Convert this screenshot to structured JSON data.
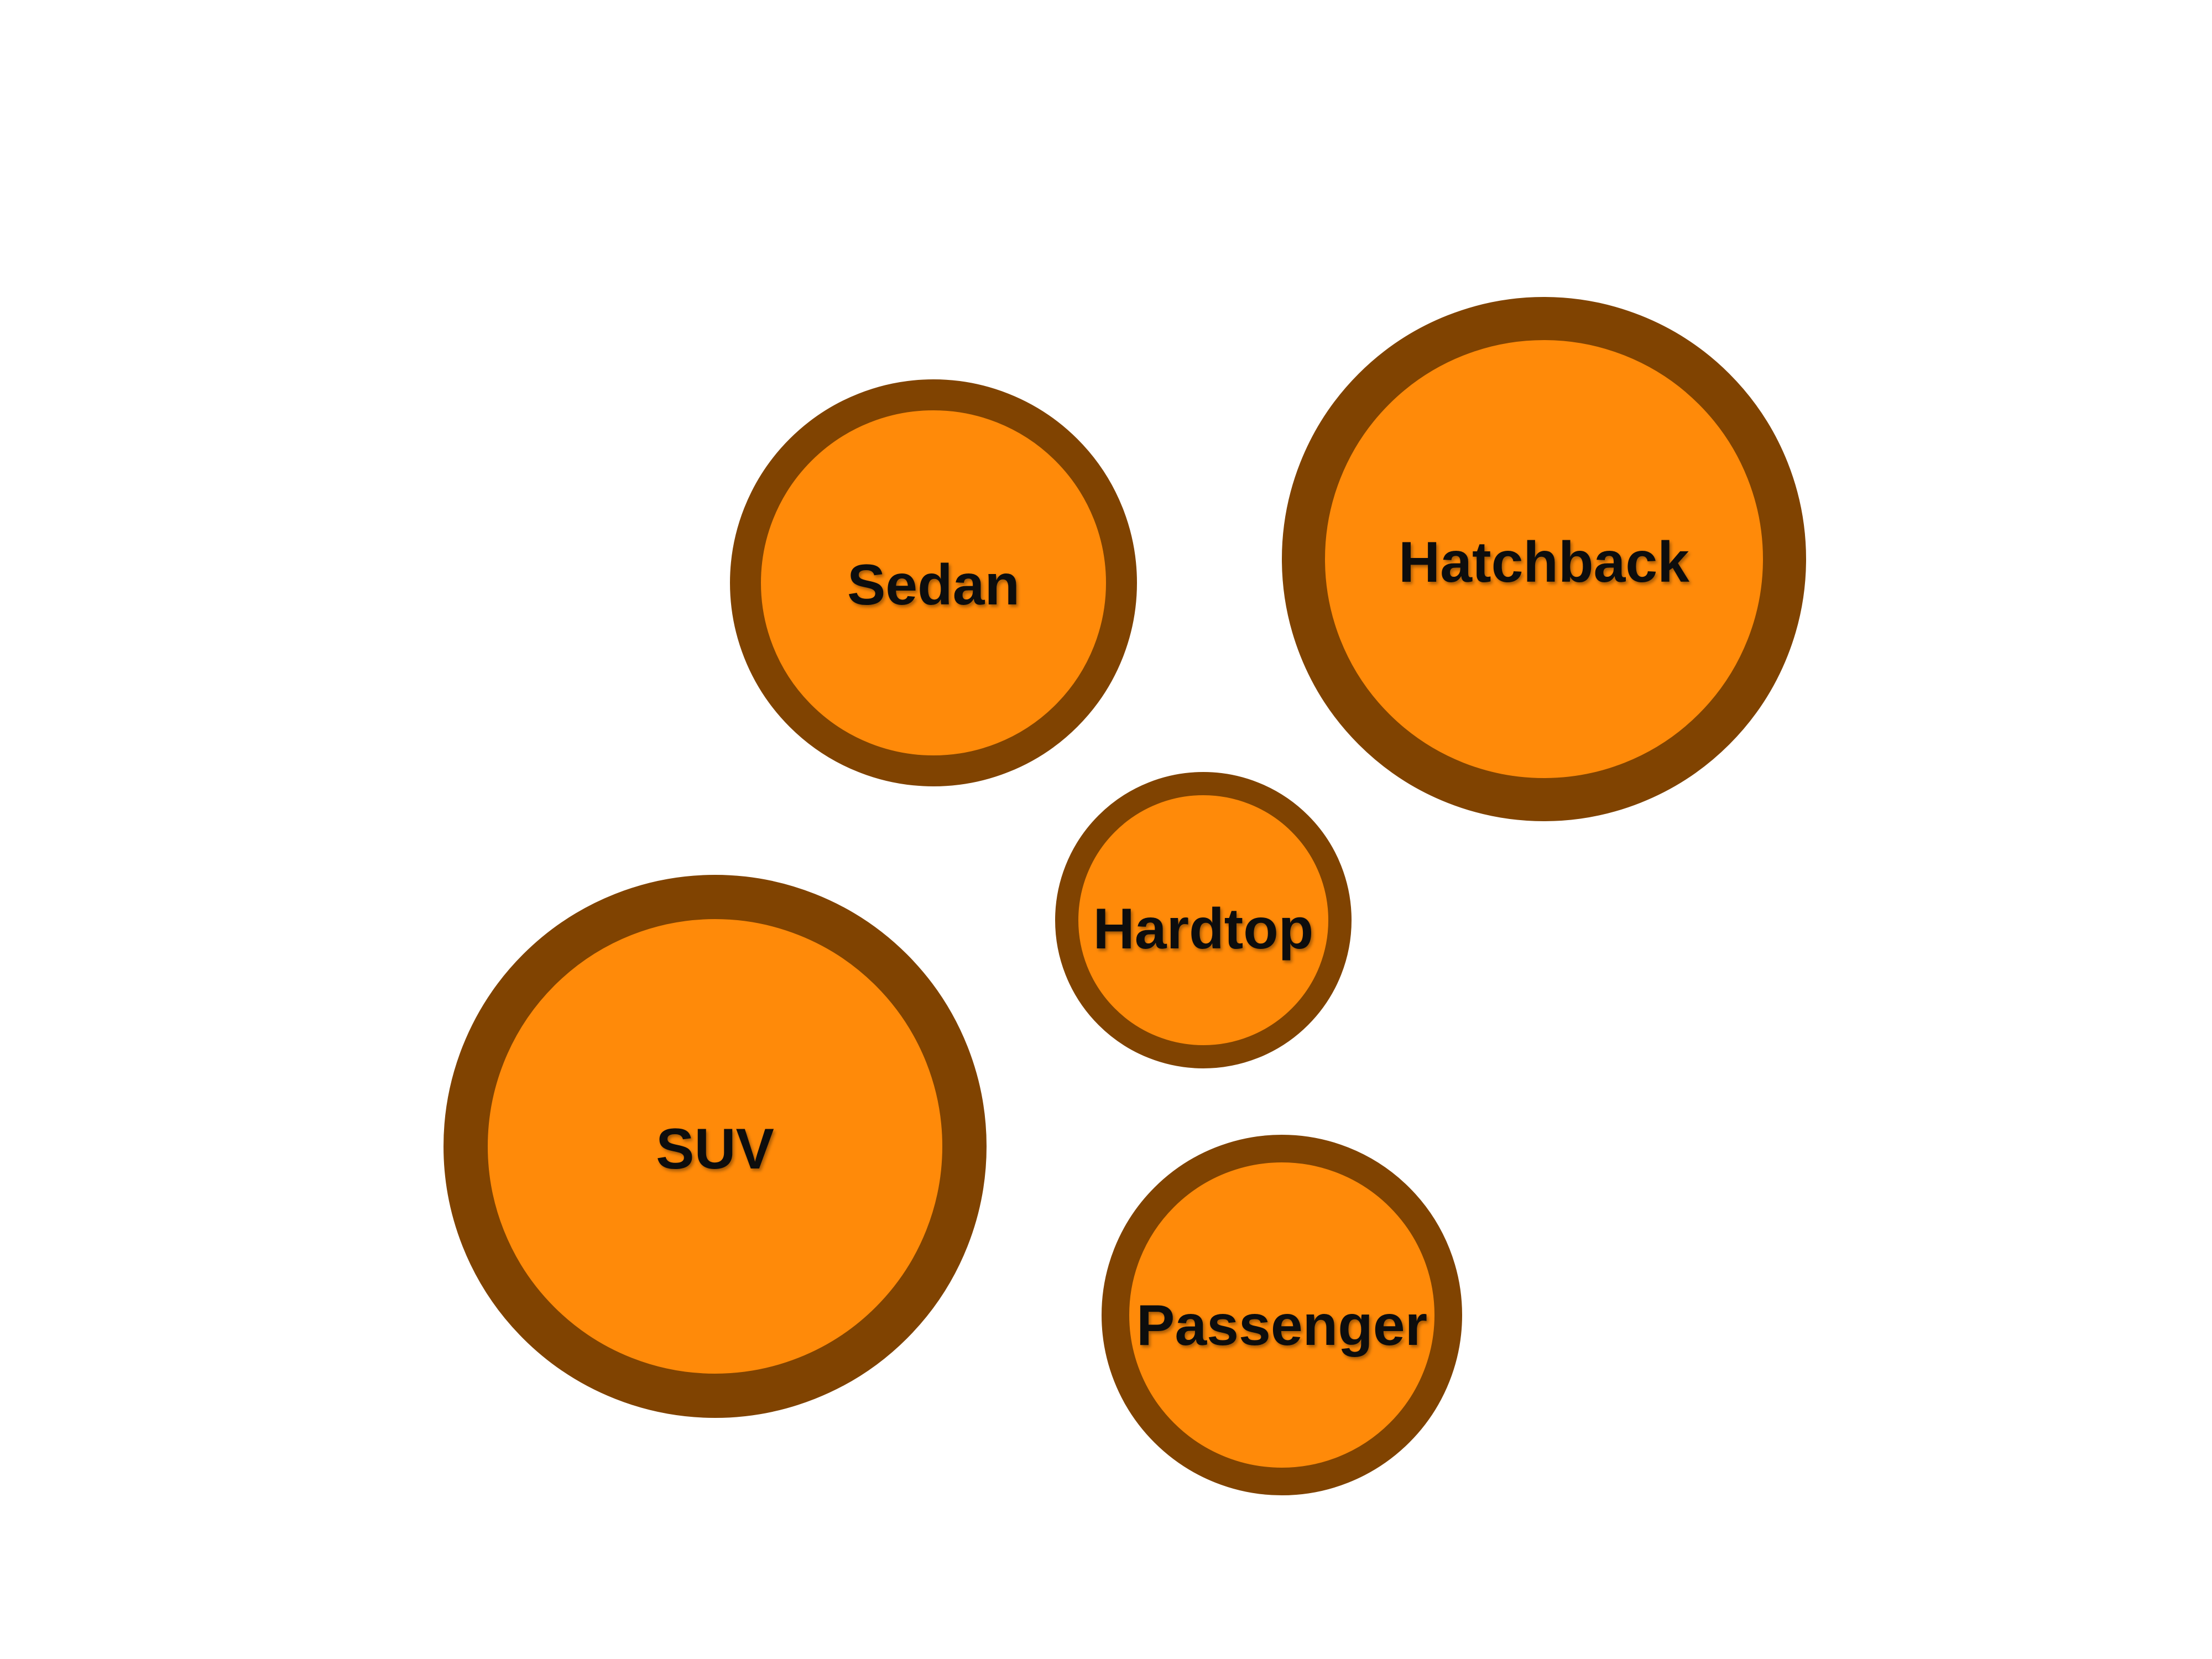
{
  "diagram": {
    "type": "bubble-cluster",
    "colors": {
      "bubble_fill": "#FF8A09",
      "bubble_border": "#804301",
      "label_text": "#111111",
      "background": "#FFFFFF"
    },
    "bubbles": [
      {
        "id": "sedan",
        "label": "Sedan"
      },
      {
        "id": "hatchback",
        "label": "Hatchback"
      },
      {
        "id": "hardtop",
        "label": "Hardtop"
      },
      {
        "id": "suv",
        "label": "SUV"
      },
      {
        "id": "passenger",
        "label": "Passenger"
      }
    ]
  }
}
